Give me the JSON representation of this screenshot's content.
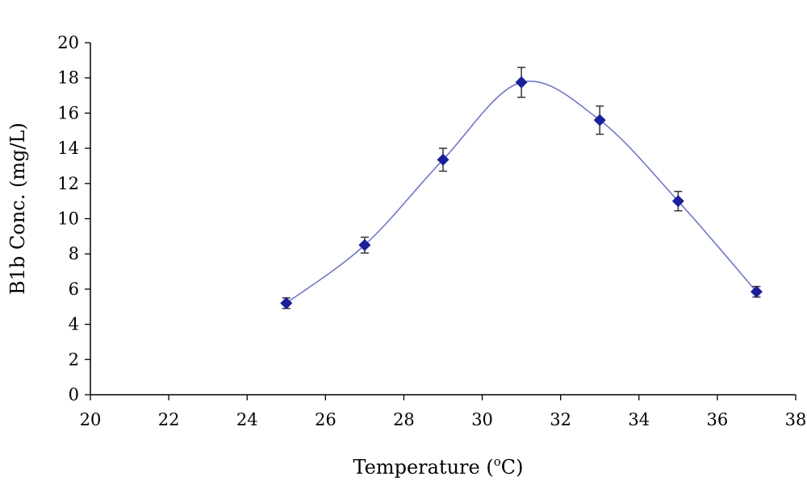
{
  "chart_data": {
    "type": "scatter",
    "xlabel": {
      "text": "Temperature (",
      "sup": "o",
      "suffix": "C)"
    },
    "ylabel": "B1b Conc. (mg/L)",
    "xlim": [
      20,
      38
    ],
    "ylim": [
      0,
      20
    ],
    "xticks": [
      "20",
      "22",
      "24",
      "26",
      "28",
      "30",
      "32",
      "34",
      "36",
      "38"
    ],
    "yticks": [
      "0",
      "2",
      "4",
      "6",
      "8",
      "10",
      "12",
      "14",
      "16",
      "18",
      "20"
    ],
    "grid": false,
    "legend": "none",
    "smooth_line": true,
    "marker": "diamond",
    "colors": {
      "series": "#1b1f9a",
      "line": "#6f78c6",
      "axis": "#000000",
      "errorbar": "#333333"
    },
    "points": [
      {
        "x": 25,
        "y": 5.2,
        "err": 0.3
      },
      {
        "x": 27,
        "y": 8.5,
        "err": 0.45
      },
      {
        "x": 29,
        "y": 13.35,
        "err": 0.65
      },
      {
        "x": 31,
        "y": 17.75,
        "err": 0.85
      },
      {
        "x": 33,
        "y": 15.6,
        "err": 0.8
      },
      {
        "x": 35,
        "y": 11.0,
        "err": 0.55
      },
      {
        "x": 37,
        "y": 5.85,
        "err": 0.3
      }
    ]
  }
}
